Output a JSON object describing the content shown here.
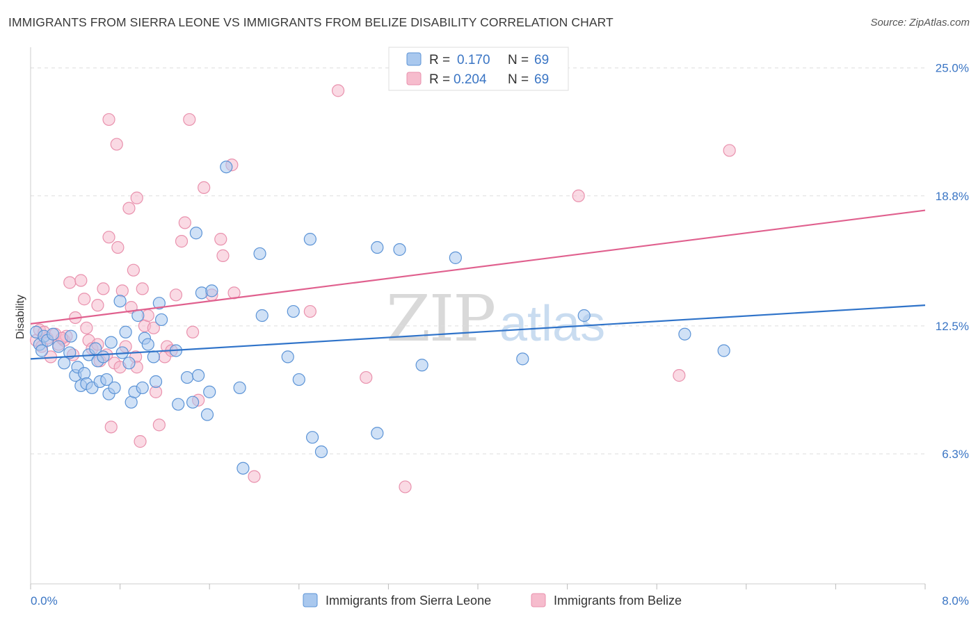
{
  "title": "IMMIGRANTS FROM SIERRA LEONE VS IMMIGRANTS FROM BELIZE DISABILITY CORRELATION CHART",
  "source": "Source: ZipAtlas.com",
  "watermark": {
    "zip": "ZIP",
    "atlas": "atlas"
  },
  "colors": {
    "blue_fill": "#a9c8ee",
    "blue_stroke": "#5b93d6",
    "blue_line": "#2f73c9",
    "pink_fill": "#f6bccd",
    "pink_stroke": "#e991ad",
    "pink_line": "#e0608e",
    "tick_label": "#3a75c4",
    "grid": "#dddddd"
  },
  "legend": {
    "r_label": "R =",
    "n_label": "N =",
    "rows": [
      {
        "r": "0.170",
        "n": "69"
      },
      {
        "r": "0.204",
        "n": "69"
      }
    ]
  },
  "chart_data": {
    "type": "scatter",
    "ylabel": "Disability",
    "xlim": [
      0.0,
      8.0
    ],
    "ylim": [
      0.0,
      26.0
    ],
    "x_tick_labels": [
      "0.0%",
      "8.0%"
    ],
    "y_ticks": [
      6.3,
      12.5,
      18.8,
      25.0
    ],
    "y_tick_labels": [
      "6.3%",
      "12.5%",
      "18.8%",
      "25.0%"
    ],
    "grid": "horizontal dashed",
    "legend_position": "top-center",
    "series": [
      {
        "name": "Immigrants from Sierra Leone",
        "color": "blue",
        "trend": {
          "x": [
            0.0,
            8.0
          ],
          "y": [
            10.9,
            13.5
          ]
        },
        "points": [
          [
            0.05,
            12.2
          ],
          [
            0.08,
            11.6
          ],
          [
            0.1,
            11.3
          ],
          [
            0.12,
            12.0
          ],
          [
            0.15,
            11.8
          ],
          [
            0.2,
            12.1
          ],
          [
            0.25,
            11.5
          ],
          [
            0.3,
            10.7
          ],
          [
            0.35,
            11.2
          ],
          [
            0.36,
            12.0
          ],
          [
            0.4,
            10.1
          ],
          [
            0.42,
            10.5
          ],
          [
            0.45,
            9.6
          ],
          [
            0.48,
            10.2
          ],
          [
            0.5,
            9.7
          ],
          [
            0.52,
            11.1
          ],
          [
            0.55,
            9.5
          ],
          [
            0.58,
            11.4
          ],
          [
            0.6,
            10.8
          ],
          [
            0.62,
            9.8
          ],
          [
            0.65,
            11.0
          ],
          [
            0.68,
            9.9
          ],
          [
            0.7,
            9.2
          ],
          [
            0.72,
            11.7
          ],
          [
            0.75,
            9.5
          ],
          [
            0.8,
            13.7
          ],
          [
            0.82,
            11.2
          ],
          [
            0.85,
            12.2
          ],
          [
            0.88,
            10.7
          ],
          [
            0.9,
            8.8
          ],
          [
            0.93,
            9.3
          ],
          [
            0.96,
            13.0
          ],
          [
            1.0,
            9.5
          ],
          [
            1.02,
            11.9
          ],
          [
            1.05,
            11.6
          ],
          [
            1.1,
            11.0
          ],
          [
            1.12,
            9.8
          ],
          [
            1.15,
            13.6
          ],
          [
            1.17,
            12.8
          ],
          [
            1.3,
            11.3
          ],
          [
            1.32,
            8.7
          ],
          [
            1.4,
            10.0
          ],
          [
            1.45,
            8.8
          ],
          [
            1.48,
            17.0
          ],
          [
            1.5,
            10.1
          ],
          [
            1.53,
            14.1
          ],
          [
            1.58,
            8.2
          ],
          [
            1.6,
            9.3
          ],
          [
            1.62,
            14.2
          ],
          [
            1.75,
            20.2
          ],
          [
            1.87,
            9.5
          ],
          [
            1.9,
            5.6
          ],
          [
            2.05,
            16.0
          ],
          [
            2.07,
            13.0
          ],
          [
            2.3,
            11.0
          ],
          [
            2.35,
            13.2
          ],
          [
            2.4,
            9.9
          ],
          [
            2.5,
            16.7
          ],
          [
            2.52,
            7.1
          ],
          [
            2.6,
            6.4
          ],
          [
            3.1,
            7.3
          ],
          [
            3.1,
            16.3
          ],
          [
            3.3,
            16.2
          ],
          [
            3.5,
            10.6
          ],
          [
            3.8,
            15.8
          ],
          [
            4.4,
            10.9
          ],
          [
            4.95,
            13.0
          ],
          [
            5.85,
            12.1
          ],
          [
            6.2,
            11.3
          ]
        ]
      },
      {
        "name": "Immigrants from Belize",
        "color": "pink",
        "trend": {
          "x": [
            0.0,
            8.0
          ],
          "y": [
            12.6,
            18.1
          ]
        },
        "points": [
          [
            0.05,
            11.8
          ],
          [
            0.08,
            12.3
          ],
          [
            0.1,
            11.5
          ],
          [
            0.15,
            11.9
          ],
          [
            0.18,
            11.0
          ],
          [
            0.22,
            12.1
          ],
          [
            0.25,
            11.6
          ],
          [
            0.3,
            11.8
          ],
          [
            0.32,
            12.0
          ],
          [
            0.35,
            14.6
          ],
          [
            0.38,
            11.1
          ],
          [
            0.4,
            12.9
          ],
          [
            0.45,
            14.7
          ],
          [
            0.48,
            13.8
          ],
          [
            0.5,
            12.4
          ],
          [
            0.52,
            11.8
          ],
          [
            0.55,
            11.4
          ],
          [
            0.6,
            13.5
          ],
          [
            0.62,
            10.8
          ],
          [
            0.65,
            14.3
          ],
          [
            0.68,
            11.1
          ],
          [
            0.7,
            16.8
          ],
          [
            0.72,
            7.6
          ],
          [
            0.75,
            10.7
          ],
          [
            0.78,
            16.3
          ],
          [
            0.8,
            10.5
          ],
          [
            0.82,
            14.2
          ],
          [
            0.85,
            11.5
          ],
          [
            0.88,
            18.2
          ],
          [
            0.9,
            13.4
          ],
          [
            0.92,
            15.2
          ],
          [
            0.94,
            11.0
          ],
          [
            0.95,
            18.7
          ],
          [
            0.98,
            6.9
          ],
          [
            1.0,
            14.3
          ],
          [
            1.02,
            12.5
          ],
          [
            1.05,
            13.0
          ],
          [
            1.1,
            12.4
          ],
          [
            1.12,
            9.3
          ],
          [
            1.15,
            7.7
          ],
          [
            1.2,
            11.0
          ],
          [
            1.22,
            11.5
          ],
          [
            1.3,
            14.0
          ],
          [
            1.35,
            16.6
          ],
          [
            1.38,
            17.5
          ],
          [
            1.42,
            22.5
          ],
          [
            1.45,
            12.2
          ],
          [
            1.5,
            8.9
          ],
          [
            1.55,
            19.2
          ],
          [
            1.62,
            14.0
          ],
          [
            1.7,
            16.7
          ],
          [
            1.72,
            15.9
          ],
          [
            1.8,
            20.3
          ],
          [
            1.82,
            14.1
          ],
          [
            2.0,
            5.2
          ],
          [
            2.5,
            13.2
          ],
          [
            2.75,
            23.9
          ],
          [
            3.0,
            10.0
          ],
          [
            3.35,
            4.7
          ],
          [
            4.9,
            18.8
          ],
          [
            0.7,
            22.5
          ],
          [
            0.77,
            21.3
          ],
          [
            5.8,
            10.1
          ],
          [
            6.25,
            21.0
          ],
          [
            0.6,
            11.6
          ],
          [
            1.26,
            11.3
          ],
          [
            0.95,
            10.5
          ],
          [
            0.12,
            12.2
          ],
          [
            0.28,
            11.9
          ]
        ]
      }
    ]
  }
}
